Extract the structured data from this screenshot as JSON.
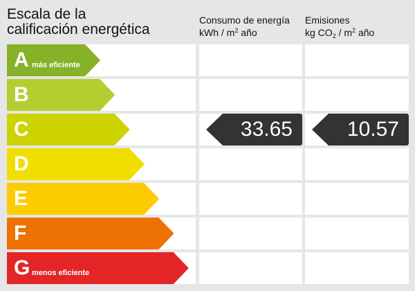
{
  "title_line1": "Escala de la",
  "title_line2": "calificación energética",
  "col_consumo": {
    "line1": "Consumo de energía",
    "unit_a": "kWh / m",
    "sup": "2",
    "unit_b": " año"
  },
  "col_emisiones": {
    "line1": "Emisiones",
    "unit_a": "kg CO",
    "sub": "2",
    "unit_b": " / m",
    "sup": "2",
    "unit_c": " año"
  },
  "ratings": [
    {
      "letter": "A",
      "label": "más eficiente",
      "color": "#88b12a"
    },
    {
      "letter": "B",
      "label": "",
      "color": "#b6cd31"
    },
    {
      "letter": "C",
      "label": "",
      "color": "#ccd300"
    },
    {
      "letter": "D",
      "label": "",
      "color": "#efde00"
    },
    {
      "letter": "E",
      "label": "",
      "color": "#fdcc00"
    },
    {
      "letter": "F",
      "label": "",
      "color": "#ed7203"
    },
    {
      "letter": "G",
      "label": "menos eficiente",
      "color": "#e32526"
    }
  ],
  "current_rating": "C",
  "consumo_value": "33.65",
  "emisiones_value": "10.57",
  "pointer_color": "#333333"
}
